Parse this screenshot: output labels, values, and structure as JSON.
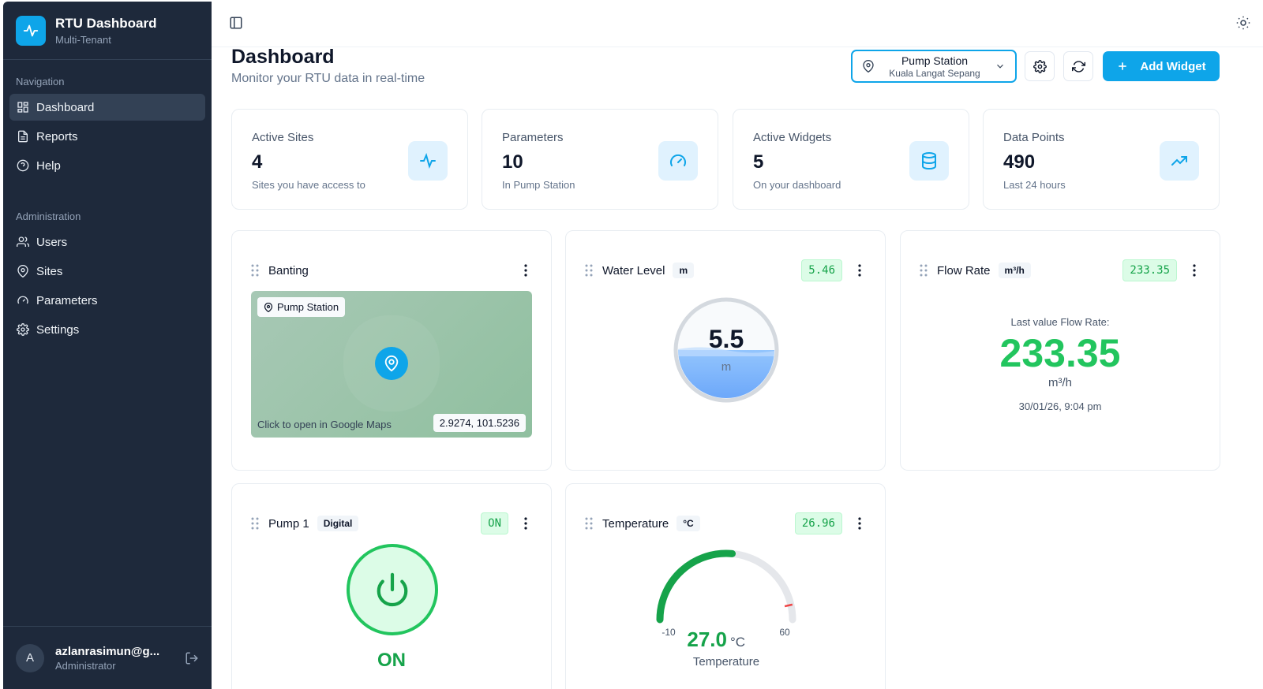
{
  "brand": {
    "title": "RTU Dashboard",
    "subtitle": "Multi-Tenant",
    "accent": "#0ea5e9"
  },
  "nav": {
    "section1": "Navigation",
    "items": [
      {
        "label": "Dashboard",
        "icon": "layout-grid-icon",
        "active": true
      },
      {
        "label": "Reports",
        "icon": "file-text-icon"
      },
      {
        "label": "Help",
        "icon": "help-circle-icon"
      }
    ],
    "section2": "Administration",
    "admin_items": [
      {
        "label": "Users",
        "icon": "users-icon"
      },
      {
        "label": "Sites",
        "icon": "map-pin-icon"
      },
      {
        "label": "Parameters",
        "icon": "gauge-icon"
      },
      {
        "label": "Settings",
        "icon": "gear-icon"
      }
    ]
  },
  "user": {
    "initial": "A",
    "name": "azlanrasimun@g...",
    "role": "Administrator"
  },
  "header": {
    "title": "Dashboard",
    "subtitle": "Monitor your RTU data in real-time"
  },
  "site_selector": {
    "name": "Pump Station",
    "location": "Kuala Langat Sepang"
  },
  "actions": {
    "add_widget": "Add Widget"
  },
  "stats": [
    {
      "label": "Active Sites",
      "value": "4",
      "desc": "Sites you have access to",
      "icon": "activity-icon"
    },
    {
      "label": "Parameters",
      "value": "10",
      "desc": "In Pump Station",
      "icon": "gauge-icon"
    },
    {
      "label": "Active Widgets",
      "value": "5",
      "desc": "On your dashboard",
      "icon": "database-icon"
    },
    {
      "label": "Data Points",
      "value": "490",
      "desc": "Last 24 hours",
      "icon": "trending-up-icon"
    }
  ],
  "widgets": {
    "map": {
      "title": "Banting",
      "tag": "Pump Station",
      "hint": "Click to open in Google Maps",
      "coords": "2.9274, 101.5236"
    },
    "water": {
      "title": "Water Level",
      "unit": "m",
      "badge": "5.46",
      "display": "5.5",
      "display_unit": "m",
      "fill_fraction": 0.5
    },
    "flow": {
      "title": "Flow Rate",
      "unit": "m³/h",
      "badge": "233.35",
      "caption": "Last value Flow Rate:",
      "value": "233.35",
      "value_unit": "m³/h",
      "timestamp": "30/01/26, 9:04 pm"
    },
    "pump": {
      "title": "Pump 1",
      "type": "Digital",
      "badge": "ON",
      "state": "ON",
      "color": "#16a34a"
    },
    "temp": {
      "title": "Temperature",
      "unit": "°C",
      "badge": "26.96",
      "value": "27.0",
      "value_unit": "°C",
      "label": "Temperature",
      "min": -10,
      "max": 60,
      "min_label": "-10",
      "max_label": "60",
      "reading": 27.0,
      "threshold": 55
    }
  }
}
